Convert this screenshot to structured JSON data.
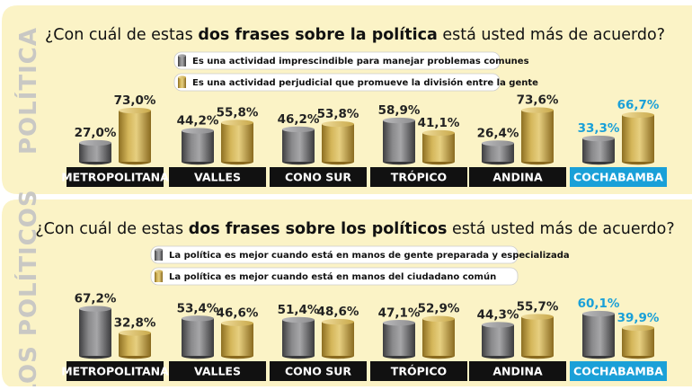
{
  "colors": {
    "panel_bg": "#fbf3c6",
    "gray_series": "#7a7a7c",
    "gold_series": "#c9a94a",
    "region_label_bg": "#111111",
    "highlight_region_bg": "#1aa0d8",
    "highlight_value_text": "#1aa0d8",
    "value_text": "#222222"
  },
  "chart_data": [
    {
      "type": "bar",
      "side_label": "POLÍTICA",
      "title": {
        "pre": "¿Con cuál de estas ",
        "bold": "dos frases sobre la política",
        "post": " está usted más de acuerdo?"
      },
      "categories": [
        "METROPOLITANA",
        "VALLES",
        "CONO SUR",
        "TRÓPICO",
        "ANDINA",
        "COCHABAMBA"
      ],
      "highlight_category": "COCHABAMBA",
      "series": [
        {
          "name": "Es una actividad imprescindible para manejar problemas comunes",
          "color": "gray",
          "values": [
            27.0,
            44.2,
            46.2,
            58.9,
            26.4,
            33.3
          ],
          "labels": [
            "27,0%",
            "44,2%",
            "46,2%",
            "58,9%",
            "26,4%",
            "33,3%"
          ]
        },
        {
          "name": "Es una actividad perjudicial que promueve la división entre la gente",
          "color": "gold",
          "values": [
            73.0,
            55.8,
            53.8,
            41.1,
            73.6,
            66.7
          ],
          "labels": [
            "73,0%",
            "55,8%",
            "53,8%",
            "41,1%",
            "73,6%",
            "66,7%"
          ]
        }
      ],
      "ylim": [
        0,
        100
      ]
    },
    {
      "type": "bar",
      "side_label": "LOS POLÍTICOS",
      "title": {
        "pre": "¿Con cuál de estas ",
        "bold": "dos frases sobre los políticos",
        "post": " está usted más de acuerdo?"
      },
      "categories": [
        "METROPOLITANA",
        "VALLES",
        "CONO SUR",
        "TRÓPICO",
        "ANDINA",
        "COCHABAMBA"
      ],
      "highlight_category": "COCHABAMBA",
      "series": [
        {
          "name": "La política es mejor cuando está en manos de gente preparada y especializada",
          "color": "gray",
          "values": [
            67.2,
            53.4,
            51.4,
            47.1,
            44.3,
            60.1
          ],
          "labels": [
            "67,2%",
            "53,4%",
            "51,4%",
            "47,1%",
            "44,3%",
            "60,1%"
          ]
        },
        {
          "name": "La política es mejor cuando está en manos del ciudadano común",
          "color": "gold",
          "values": [
            32.8,
            46.6,
            48.6,
            52.9,
            55.7,
            39.9
          ],
          "labels": [
            "32,8%",
            "46,6%",
            "48,6%",
            "52,9%",
            "55,7%",
            "39,9%"
          ]
        }
      ],
      "ylim": [
        0,
        100
      ]
    }
  ]
}
